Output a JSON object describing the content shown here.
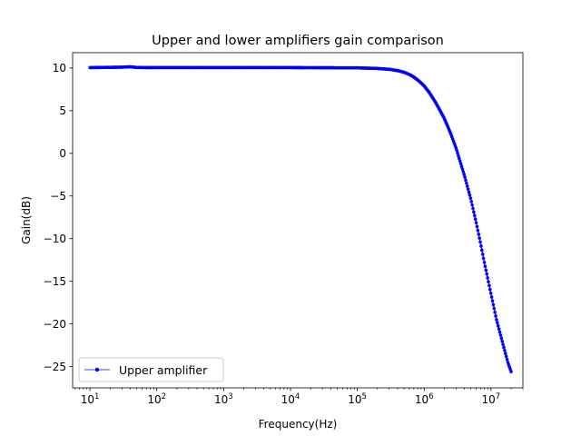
{
  "chart_data": {
    "type": "line",
    "title": "Upper and lower amplifiers gain comparison",
    "xlabel": "Frequency(Hz)",
    "ylabel": "Gain(dB)",
    "x_scale": "log",
    "xlim": [
      5.5,
      30000000
    ],
    "ylim": [
      -27.5,
      11.8
    ],
    "x_ticks": [
      {
        "value": 10,
        "base": "10",
        "exp": "1"
      },
      {
        "value": 100,
        "base": "10",
        "exp": "2"
      },
      {
        "value": 1000,
        "base": "10",
        "exp": "3"
      },
      {
        "value": 10000,
        "base": "10",
        "exp": "4"
      },
      {
        "value": 100000,
        "base": "10",
        "exp": "5"
      },
      {
        "value": 1000000,
        "base": "10",
        "exp": "6"
      },
      {
        "value": 10000000,
        "base": "10",
        "exp": "7"
      }
    ],
    "y_ticks": [
      {
        "value": 10,
        "label": "10"
      },
      {
        "value": 5,
        "label": "5"
      },
      {
        "value": 0,
        "label": "0"
      },
      {
        "value": -5,
        "label": "−5"
      },
      {
        "value": -10,
        "label": "−10"
      },
      {
        "value": -15,
        "label": "−15"
      },
      {
        "value": -20,
        "label": "−20"
      },
      {
        "value": -25,
        "label": "−25"
      }
    ],
    "grid": false,
    "legend_position": "lower-left",
    "series": [
      {
        "name": "Upper amplifier",
        "color": "#0000ff",
        "marker": "dot",
        "x": [
          10,
          20,
          30,
          40,
          50,
          100,
          1000,
          10000,
          100000,
          200000,
          300000,
          400000,
          500000,
          600000,
          700000,
          800000,
          900000,
          1000000,
          1200000,
          1500000,
          2000000,
          2500000,
          3000000,
          4000000,
          5000000,
          6000000,
          7000000,
          8000000,
          10000000,
          12000000,
          15000000,
          18000000,
          20000000
        ],
        "values": [
          10.05,
          10.08,
          10.1,
          10.15,
          10.06,
          10.05,
          10.05,
          10.05,
          10.02,
          9.95,
          9.85,
          9.7,
          9.5,
          9.25,
          8.95,
          8.6,
          8.25,
          7.9,
          7.1,
          5.9,
          4.1,
          2.3,
          0.6,
          -2.6,
          -5.4,
          -8.1,
          -10.6,
          -12.9,
          -16.5,
          -19.4,
          -22.3,
          -24.6,
          -25.6
        ]
      }
    ]
  }
}
